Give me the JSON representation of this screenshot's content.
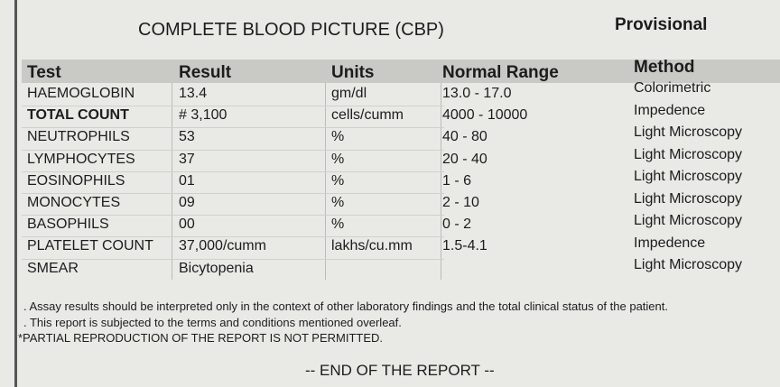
{
  "header": {
    "title": "COMPLETE BLOOD PICTURE (CBP)",
    "status": "Provisional"
  },
  "table": {
    "columns": [
      "Test",
      "Result",
      "Units",
      "Normal Range",
      "Method"
    ],
    "rows": [
      [
        "HAEMOGLOBIN",
        "13.4",
        "gm/dl",
        "13.0 - 17.0",
        "Colorimetric"
      ],
      [
        "TOTAL COUNT",
        "# 3,100",
        "cells/cumm",
        "4000 - 10000",
        "Impedence"
      ],
      [
        "NEUTROPHILS",
        "53",
        "%",
        "40 - 80",
        "Light Microscopy"
      ],
      [
        "LYMPHOCYTES",
        "37",
        "%",
        "20 - 40",
        "Light Microscopy"
      ],
      [
        "EOSINOPHILS",
        "01",
        "%",
        "1 - 6",
        "Light Microscopy"
      ],
      [
        "MONOCYTES",
        "09",
        "%",
        "2 - 10",
        "Light Microscopy"
      ],
      [
        "BASOPHILS",
        "00",
        "%",
        "0 - 2",
        "Light Microscopy"
      ],
      [
        "PLATELET COUNT",
        "37,000/cumm",
        "lakhs/cu.mm",
        "1.5-4.1",
        "Impedence"
      ],
      [
        "SMEAR",
        "Bicytopenia",
        null,
        null,
        "Light Microscopy"
      ]
    ]
  },
  "notes": [
    ". Assay results should be interpreted only in the context of other laboratory findings and the total clinical status of the patient.",
    ". This report is subjected to the terms and conditions mentioned overleaf.",
    "*PARTIAL REPRODUCTION OF THE REPORT IS NOT PERMITTED."
  ],
  "footer": "-- END OF THE REPORT --"
}
